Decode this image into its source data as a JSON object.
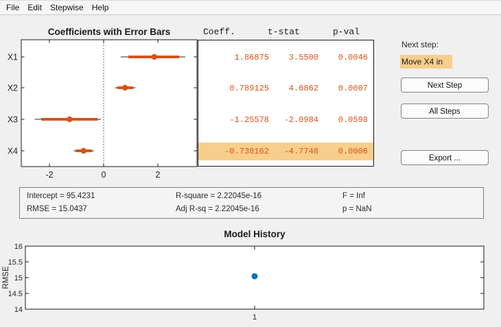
{
  "menu": {
    "items": [
      "File",
      "Edit",
      "Stepwise",
      "Help"
    ]
  },
  "coef_plot": {
    "title": "Coefficients with Error Bars",
    "x_ticks": [
      -2,
      0,
      2
    ],
    "zero_line": 0,
    "terms": [
      {
        "label": "X1",
        "coeff": 1.86875,
        "ci_inner": [
          0.91,
          2.79
        ],
        "ci_outer": [
          0.63,
          3.01
        ]
      },
      {
        "label": "X2",
        "coeff": 0.789125,
        "ci_inner": [
          0.5,
          1.09
        ],
        "ci_outer": [
          0.42,
          1.17
        ]
      },
      {
        "label": "X3",
        "coeff": -1.25578,
        "ci_inner": [
          -2.3,
          -0.22
        ],
        "ci_outer": [
          -2.54,
          -0.1
        ]
      },
      {
        "label": "X4",
        "coeff": -0.738162,
        "ci_inner": [
          -1.03,
          -0.43
        ],
        "ci_outer": [
          -1.1,
          -0.36
        ]
      }
    ]
  },
  "table": {
    "headers": [
      "Coeff.",
      "t-stat",
      "p-val"
    ],
    "rows": [
      {
        "coeff": "1.86875",
        "t_stat": "3.5500",
        "p_val": "0.0046",
        "highlighted": false
      },
      {
        "coeff": "0.789125",
        "t_stat": "4.6862",
        "p_val": "0.0007",
        "highlighted": false
      },
      {
        "coeff": "-1.25578",
        "t_stat": "-2.0984",
        "p_val": "0.0598",
        "highlighted": false
      },
      {
        "coeff": "-0.738162",
        "t_stat": "-4.7748",
        "p_val": "0.0006",
        "highlighted": true
      }
    ]
  },
  "next_step": {
    "label": "Next step:",
    "suggestion": "Move X4 in"
  },
  "buttons": {
    "next_step": "Next Step",
    "all_steps": "All Steps",
    "export": "Export ..."
  },
  "stats": {
    "intercept": "Intercept = 95.4231",
    "rmse": "RMSE = 15.0437",
    "r_square": "R-square = 2.22045e-16",
    "adj_r_sq": "Adj R-sq = 2.22045e-16",
    "f": "F = Inf",
    "p": "p = NaN"
  },
  "history_plot": {
    "title": "Model History",
    "ylabel": "RMSE",
    "y_ticks": [
      16,
      15.5,
      15,
      14.5,
      14
    ],
    "x_ticks": [
      1
    ],
    "ylim": [
      14,
      16
    ],
    "points": [
      {
        "x": 1,
        "rmse": 15.0437
      }
    ]
  },
  "chart_data": [
    {
      "type": "scatter",
      "title": "Coefficients with Error Bars",
      "orientation": "horizontal-errorbars",
      "categories": [
        "X1",
        "X2",
        "X3",
        "X4"
      ],
      "values": [
        1.86875,
        0.789125,
        -1.25578,
        -0.738162
      ],
      "error_inner": [
        [
          0.91,
          2.79
        ],
        [
          0.5,
          1.09
        ],
        [
          -2.3,
          -0.22
        ],
        [
          -1.03,
          -0.43
        ]
      ],
      "error_outer": [
        [
          0.63,
          3.01
        ],
        [
          0.42,
          1.17
        ],
        [
          -2.54,
          -0.1
        ],
        [
          -1.1,
          -0.36
        ]
      ],
      "xlabel": "",
      "ylabel": "",
      "xlim": [
        -3.05,
        3.45
      ],
      "x_ticks": [
        -2,
        0,
        2
      ],
      "reference_line_x": 0
    },
    {
      "type": "scatter",
      "title": "Model History",
      "x": [
        1
      ],
      "values": [
        15.0437
      ],
      "xlabel": "",
      "ylabel": "RMSE",
      "ylim": [
        14,
        16
      ],
      "y_ticks": [
        14,
        14.5,
        15,
        15.5,
        16
      ],
      "x_ticks": [
        1
      ]
    }
  ],
  "colors": {
    "accent_orange": "#d95319",
    "highlight": "#f8ce8d",
    "history_point_blue": "#0072bd",
    "axis": "#1a1a1a",
    "errorbar_outer": "#4d4d4d"
  }
}
